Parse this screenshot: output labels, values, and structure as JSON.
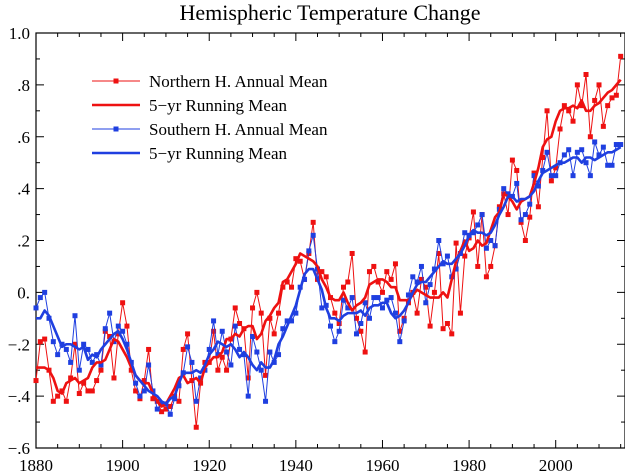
{
  "chart_data": {
    "type": "line",
    "title": "Hemispheric Temperature Change",
    "xlabel": "",
    "ylabel": "",
    "xlim": [
      1880,
      2016
    ],
    "ylim": [
      -0.6,
      1.0
    ],
    "x_ticks": [
      1880,
      1900,
      1920,
      1940,
      1960,
      1980,
      2000
    ],
    "x_tick_labels": [
      "1880",
      "1900",
      "1920",
      "1940",
      "1960",
      "1980",
      "2000"
    ],
    "y_ticks": [
      -0.6,
      -0.4,
      -0.2,
      0.0,
      0.2,
      0.4,
      0.6,
      0.8,
      1.0
    ],
    "y_tick_labels": [
      "−.6",
      "−.4",
      "−.2",
      "0.",
      ".2",
      ".4",
      ".6",
      ".8",
      "1.0"
    ],
    "grid": false,
    "legend_position": "top-left",
    "colors": {
      "north": "#ee1111",
      "south": "#1f3fe0"
    },
    "x": [
      1880,
      1881,
      1882,
      1883,
      1884,
      1885,
      1886,
      1887,
      1888,
      1889,
      1890,
      1891,
      1892,
      1893,
      1894,
      1895,
      1896,
      1897,
      1898,
      1899,
      1900,
      1901,
      1902,
      1903,
      1904,
      1905,
      1906,
      1907,
      1908,
      1909,
      1910,
      1911,
      1912,
      1913,
      1914,
      1915,
      1916,
      1917,
      1918,
      1919,
      1920,
      1921,
      1922,
      1923,
      1924,
      1925,
      1926,
      1927,
      1928,
      1929,
      1930,
      1931,
      1932,
      1933,
      1934,
      1935,
      1936,
      1937,
      1938,
      1939,
      1940,
      1941,
      1942,
      1943,
      1944,
      1945,
      1946,
      1947,
      1948,
      1949,
      1950,
      1951,
      1952,
      1953,
      1954,
      1955,
      1956,
      1957,
      1958,
      1959,
      1960,
      1961,
      1962,
      1963,
      1964,
      1965,
      1966,
      1967,
      1968,
      1969,
      1970,
      1971,
      1972,
      1973,
      1974,
      1975,
      1976,
      1977,
      1978,
      1979,
      1980,
      1981,
      1982,
      1983,
      1984,
      1985,
      1986,
      1987,
      1988,
      1989,
      1990,
      1991,
      1992,
      1993,
      1994,
      1995,
      1996,
      1997,
      1998,
      1999,
      2000,
      2001,
      2002,
      2003,
      2004,
      2005,
      2006,
      2007,
      2008,
      2009,
      2010,
      2011,
      2012,
      2013,
      2014,
      2015
    ],
    "series": [
      {
        "name": "Northern H. Annual Mean",
        "kind": "annual",
        "values": [
          -0.34,
          -0.19,
          -0.18,
          -0.3,
          -0.42,
          -0.4,
          -0.38,
          -0.42,
          -0.33,
          -0.2,
          -0.39,
          -0.35,
          -0.38,
          -0.38,
          -0.34,
          -0.3,
          -0.15,
          -0.17,
          -0.33,
          -0.16,
          -0.04,
          -0.13,
          -0.3,
          -0.38,
          -0.41,
          -0.34,
          -0.22,
          -0.41,
          -0.42,
          -0.46,
          -0.45,
          -0.44,
          -0.4,
          -0.42,
          -0.22,
          -0.16,
          -0.34,
          -0.52,
          -0.35,
          -0.27,
          -0.27,
          -0.15,
          -0.3,
          -0.25,
          -0.3,
          -0.18,
          -0.06,
          -0.12,
          -0.14,
          -0.33,
          -0.06,
          0.0,
          -0.08,
          -0.32,
          -0.1,
          -0.16,
          -0.08,
          0.02,
          0.04,
          0.02,
          0.13,
          0.12,
          0.05,
          0.15,
          0.27,
          0.05,
          0.08,
          0.06,
          -0.02,
          -0.08,
          -0.12,
          0.02,
          0.04,
          0.15,
          -0.1,
          -0.15,
          -0.23,
          0.08,
          0.1,
          0.04,
          0.0,
          0.08,
          0.05,
          0.11,
          -0.15,
          -0.1,
          -0.04,
          0.0,
          -0.08,
          0.05,
          0.02,
          -0.13,
          0.0,
          0.15,
          -0.14,
          -0.12,
          -0.16,
          0.19,
          -0.08,
          0.14,
          0.21,
          0.31,
          0.1,
          0.3,
          0.06,
          0.1,
          0.18,
          0.33,
          0.38,
          0.3,
          0.51,
          0.47,
          0.27,
          0.2,
          0.29,
          0.46,
          0.33,
          0.52,
          0.7,
          0.43,
          0.48,
          0.63,
          0.72,
          0.7,
          0.66,
          0.8,
          0.72,
          0.84,
          0.6,
          0.74,
          0.8,
          0.64,
          0.72,
          0.75,
          0.76,
          0.91
        ]
      },
      {
        "name": "5−yr Running Mean",
        "kind": "running",
        "ref": "north",
        "values": [
          -0.29,
          -0.29,
          -0.29,
          -0.3,
          -0.33,
          -0.38,
          -0.39,
          -0.35,
          -0.34,
          -0.33,
          -0.35,
          -0.34,
          -0.33,
          -0.29,
          -0.27,
          -0.27,
          -0.26,
          -0.22,
          -0.18,
          -0.19,
          -0.22,
          -0.25,
          -0.29,
          -0.32,
          -0.34,
          -0.35,
          -0.35,
          -0.39,
          -0.42,
          -0.44,
          -0.43,
          -0.4,
          -0.37,
          -0.33,
          -0.32,
          -0.35,
          -0.34,
          -0.33,
          -0.35,
          -0.29,
          -0.27,
          -0.25,
          -0.25,
          -0.23,
          -0.18,
          -0.18,
          -0.16,
          -0.17,
          -0.14,
          -0.13,
          -0.13,
          -0.18,
          -0.16,
          -0.11,
          -0.09,
          -0.06,
          -0.04,
          0.04,
          0.05,
          0.08,
          0.11,
          0.15,
          0.14,
          0.13,
          0.12,
          0.1,
          0.05,
          0.02,
          -0.02,
          -0.03,
          -0.03,
          0.0,
          -0.04,
          -0.07,
          -0.05,
          -0.04,
          -0.02,
          0.03,
          0.04,
          0.05,
          0.05,
          0.04,
          0.02,
          0.02,
          -0.03,
          -0.03,
          -0.03,
          -0.01,
          0.01,
          0.0,
          -0.01,
          -0.02,
          -0.02,
          -0.02,
          0.0,
          -0.02,
          0.05,
          0.12,
          0.16,
          0.2,
          0.16,
          0.17,
          0.2,
          0.18,
          0.19,
          0.24,
          0.29,
          0.31,
          0.38,
          0.37,
          0.35,
          0.32,
          0.35,
          0.36,
          0.37,
          0.42,
          0.48,
          0.56,
          0.59,
          0.6,
          0.66,
          0.7,
          0.71,
          0.71,
          0.72,
          0.71,
          0.74,
          0.7,
          0.7,
          0.72,
          0.73,
          0.75,
          0.77,
          0.78,
          0.8,
          0.82
        ]
      },
      {
        "name": "Southern H. Annual Mean",
        "kind": "annual",
        "values": [
          -0.06,
          -0.02,
          0.0,
          -0.1,
          -0.19,
          -0.24,
          -0.2,
          -0.22,
          -0.27,
          -0.09,
          -0.3,
          -0.2,
          -0.22,
          -0.27,
          -0.24,
          -0.28,
          -0.14,
          -0.08,
          -0.19,
          -0.13,
          -0.15,
          -0.2,
          -0.27,
          -0.35,
          -0.4,
          -0.38,
          -0.28,
          -0.38,
          -0.45,
          -0.43,
          -0.43,
          -0.47,
          -0.41,
          -0.36,
          -0.31,
          -0.21,
          -0.27,
          -0.42,
          -0.33,
          -0.3,
          -0.22,
          -0.11,
          -0.24,
          -0.15,
          -0.23,
          -0.28,
          -0.13,
          -0.22,
          -0.24,
          -0.4,
          -0.17,
          -0.23,
          -0.3,
          -0.42,
          -0.23,
          -0.27,
          -0.24,
          -0.14,
          -0.11,
          -0.11,
          -0.08,
          0.02,
          0.05,
          0.16,
          0.22,
          0.09,
          -0.06,
          -0.05,
          -0.13,
          -0.19,
          -0.15,
          -0.03,
          -0.06,
          -0.02,
          -0.16,
          -0.12,
          -0.04,
          -0.1,
          -0.02,
          -0.02,
          -0.06,
          -0.03,
          -0.02,
          -0.08,
          -0.19,
          -0.11,
          -0.01,
          0.06,
          0.04,
          0.1,
          -0.04,
          0.03,
          0.09,
          0.2,
          0.11,
          0.14,
          0.06,
          0.09,
          0.15,
          0.23,
          0.22,
          0.23,
          0.26,
          0.3,
          0.17,
          0.2,
          0.18,
          0.32,
          0.4,
          0.38,
          0.37,
          0.42,
          0.28,
          0.3,
          0.34,
          0.45,
          0.41,
          0.47,
          0.54,
          0.45,
          0.45,
          0.5,
          0.53,
          0.55,
          0.45,
          0.54,
          0.55,
          0.5,
          0.45,
          0.58,
          0.53,
          0.56,
          0.49,
          0.49,
          0.57,
          0.57
        ]
      },
      {
        "name": "5−yr Running Mean",
        "kind": "running",
        "ref": "south",
        "values": [
          -0.1,
          -0.1,
          -0.07,
          -0.09,
          -0.13,
          -0.17,
          -0.21,
          -0.2,
          -0.2,
          -0.21,
          -0.22,
          -0.21,
          -0.26,
          -0.24,
          -0.25,
          -0.22,
          -0.2,
          -0.18,
          -0.16,
          -0.15,
          -0.18,
          -0.22,
          -0.27,
          -0.32,
          -0.34,
          -0.36,
          -0.38,
          -0.39,
          -0.4,
          -0.42,
          -0.43,
          -0.41,
          -0.4,
          -0.35,
          -0.31,
          -0.31,
          -0.31,
          -0.3,
          -0.31,
          -0.28,
          -0.24,
          -0.22,
          -0.19,
          -0.2,
          -0.21,
          -0.2,
          -0.22,
          -0.25,
          -0.23,
          -0.25,
          -0.28,
          -0.3,
          -0.27,
          -0.29,
          -0.29,
          -0.26,
          -0.2,
          -0.17,
          -0.13,
          -0.09,
          -0.05,
          0.01,
          0.07,
          0.09,
          0.09,
          0.05,
          0.01,
          -0.06,
          -0.1,
          -0.1,
          -0.11,
          -0.09,
          -0.08,
          -0.08,
          -0.08,
          -0.07,
          -0.09,
          -0.06,
          -0.05,
          -0.05,
          -0.04,
          -0.04,
          -0.08,
          -0.1,
          -0.09,
          -0.07,
          -0.04,
          0.0,
          0.03,
          0.04,
          0.04,
          0.06,
          0.08,
          0.1,
          0.12,
          0.11,
          0.11,
          0.13,
          0.15,
          0.18,
          0.22,
          0.24,
          0.23,
          0.23,
          0.22,
          0.23,
          0.26,
          0.3,
          0.33,
          0.37,
          0.37,
          0.35,
          0.36,
          0.36,
          0.37,
          0.39,
          0.43,
          0.46,
          0.47,
          0.48,
          0.49,
          0.5,
          0.5,
          0.51,
          0.52,
          0.52,
          0.5,
          0.52,
          0.52,
          0.51,
          0.52,
          0.53,
          0.54,
          0.54,
          0.55,
          0.56
        ]
      }
    ]
  }
}
